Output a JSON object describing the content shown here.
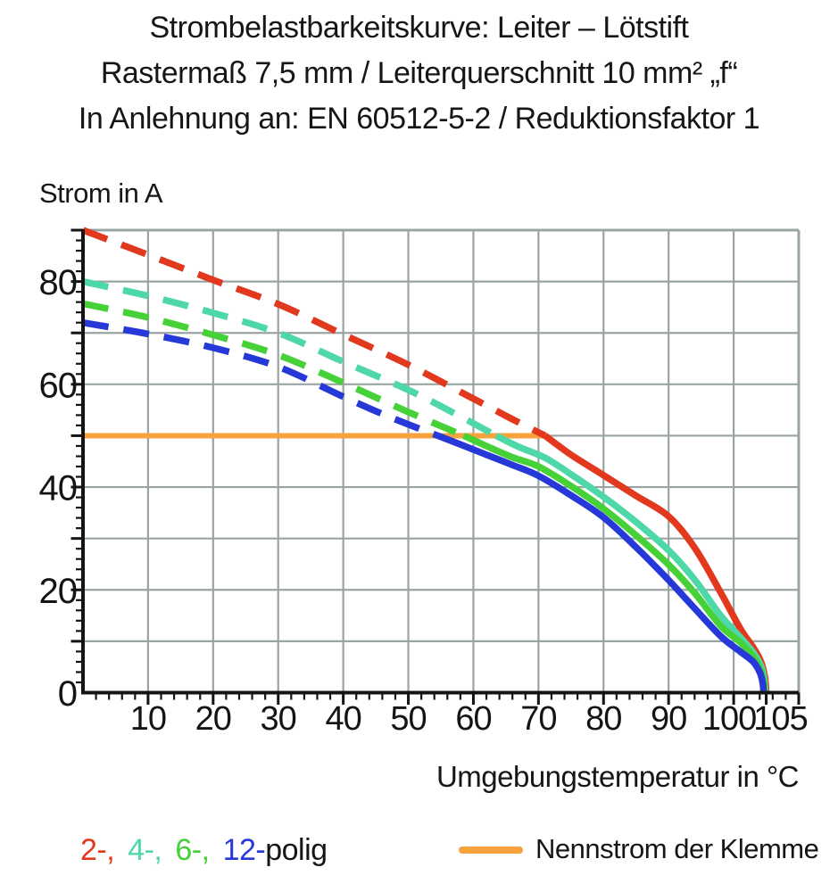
{
  "chart_data": {
    "type": "line",
    "title_lines": [
      "Strombelastbarkeitskurve: Leiter – Lötstift",
      "Rastermaß 7,5 mm / Leiterquerschnitt 10 mm² „f“",
      "In Anlehnung an: EN 60512-5-2 / Reduktionsfaktor 1"
    ],
    "xlabel": "Umgebungstemperatur in °C",
    "ylabel": "Strom in A",
    "xlim": [
      0,
      110
    ],
    "ylim": [
      0,
      90
    ],
    "x_tick_labels": [
      10,
      20,
      30,
      40,
      50,
      60,
      70,
      80,
      90,
      100,
      105
    ],
    "y_tick_labels": [
      0,
      20,
      40,
      60,
      80
    ],
    "grid_step": 10,
    "minor_tick_step": 2,
    "grid": true,
    "grid_color": "#9aa4a2",
    "axis_color": "#141414",
    "legend_position": "bottom",
    "series": [
      {
        "name": "2-polig",
        "poles": 2,
        "color": "#e2391e",
        "line_style": "dashed above nominal current, solid below",
        "dashed_points": [
          [
            0,
            90
          ],
          [
            10,
            85.2
          ],
          [
            20,
            80.3
          ],
          [
            30,
            75.6
          ],
          [
            40,
            69.7
          ],
          [
            50,
            63.8
          ],
          [
            60,
            57.2
          ],
          [
            66,
            53.2
          ],
          [
            71,
            50
          ]
        ],
        "solid_points": [
          [
            71,
            50
          ],
          [
            75,
            46.3
          ],
          [
            80,
            42.3
          ],
          [
            85,
            38.3
          ],
          [
            90,
            34.3
          ],
          [
            94,
            28.2
          ],
          [
            98,
            19.5
          ],
          [
            101,
            12.5
          ],
          [
            103,
            8.8
          ],
          [
            104.2,
            6
          ],
          [
            104.8,
            3
          ],
          [
            105,
            0
          ]
        ]
      },
      {
        "name": "4-polig",
        "poles": 4,
        "color": "#4ed7a7",
        "line_style": "dashed above nominal current, solid below",
        "dashed_points": [
          [
            0,
            80
          ],
          [
            10,
            77.2
          ],
          [
            20,
            73.9
          ],
          [
            30,
            70
          ],
          [
            40,
            64.4
          ],
          [
            50,
            58.9
          ],
          [
            57,
            54.4
          ],
          [
            63.5,
            50
          ]
        ],
        "solid_points": [
          [
            63.5,
            50
          ],
          [
            67,
            47.8
          ],
          [
            71,
            45.7
          ],
          [
            75,
            42.5
          ],
          [
            80,
            38.1
          ],
          [
            85,
            33.2
          ],
          [
            90,
            27.7
          ],
          [
            94,
            22
          ],
          [
            98,
            15
          ],
          [
            101,
            10.8
          ],
          [
            103,
            7.8
          ],
          [
            104.2,
            5.2
          ],
          [
            104.7,
            2.5
          ],
          [
            104.85,
            0
          ]
        ]
      },
      {
        "name": "6-polig",
        "poles": 6,
        "color": "#47d138",
        "line_style": "dashed above nominal current, solid below",
        "dashed_points": [
          [
            0,
            75.7
          ],
          [
            10,
            73
          ],
          [
            20,
            69.6
          ],
          [
            30,
            65.7
          ],
          [
            40,
            60.3
          ],
          [
            50,
            54.6
          ],
          [
            58.5,
            50
          ]
        ],
        "solid_points": [
          [
            58.5,
            50
          ],
          [
            62,
            48
          ],
          [
            66,
            45.8
          ],
          [
            70,
            44
          ],
          [
            75,
            40.2
          ],
          [
            80,
            35.8
          ],
          [
            85,
            30.6
          ],
          [
            90,
            24.9
          ],
          [
            94,
            19.4
          ],
          [
            98,
            13
          ],
          [
            101,
            9.8
          ],
          [
            103,
            7
          ],
          [
            104.1,
            4.6
          ],
          [
            104.6,
            2.2
          ],
          [
            104.75,
            0
          ]
        ]
      },
      {
        "name": "12-polig",
        "poles": 12,
        "color": "#2639d8",
        "line_style": "dashed above nominal current, solid below",
        "dashed_points": [
          [
            0,
            72
          ],
          [
            10,
            69.8
          ],
          [
            20,
            67.1
          ],
          [
            30,
            63.4
          ],
          [
            40,
            57.6
          ],
          [
            47,
            53.7
          ],
          [
            54.5,
            50
          ]
        ],
        "solid_points": [
          [
            54.5,
            50
          ],
          [
            58,
            48.3
          ],
          [
            62,
            46.3
          ],
          [
            66,
            44.3
          ],
          [
            70,
            42.2
          ],
          [
            75,
            38.4
          ],
          [
            80,
            34.1
          ],
          [
            85,
            28.3
          ],
          [
            90,
            21.9
          ],
          [
            94,
            16.4
          ],
          [
            98,
            11
          ],
          [
            101,
            8
          ],
          [
            103,
            6
          ],
          [
            104,
            4
          ],
          [
            104.45,
            2
          ],
          [
            104.6,
            0
          ]
        ]
      }
    ],
    "nominal_line": {
      "label": "Nennstrom der Klemme",
      "color": "#f8a23e",
      "y": 50,
      "x_start": 0,
      "x_end": 71.3
    }
  },
  "legend": {
    "pole_labels": [
      "2-,",
      "4-,",
      "6-,",
      "12-"
    ],
    "suffix": "polig"
  }
}
